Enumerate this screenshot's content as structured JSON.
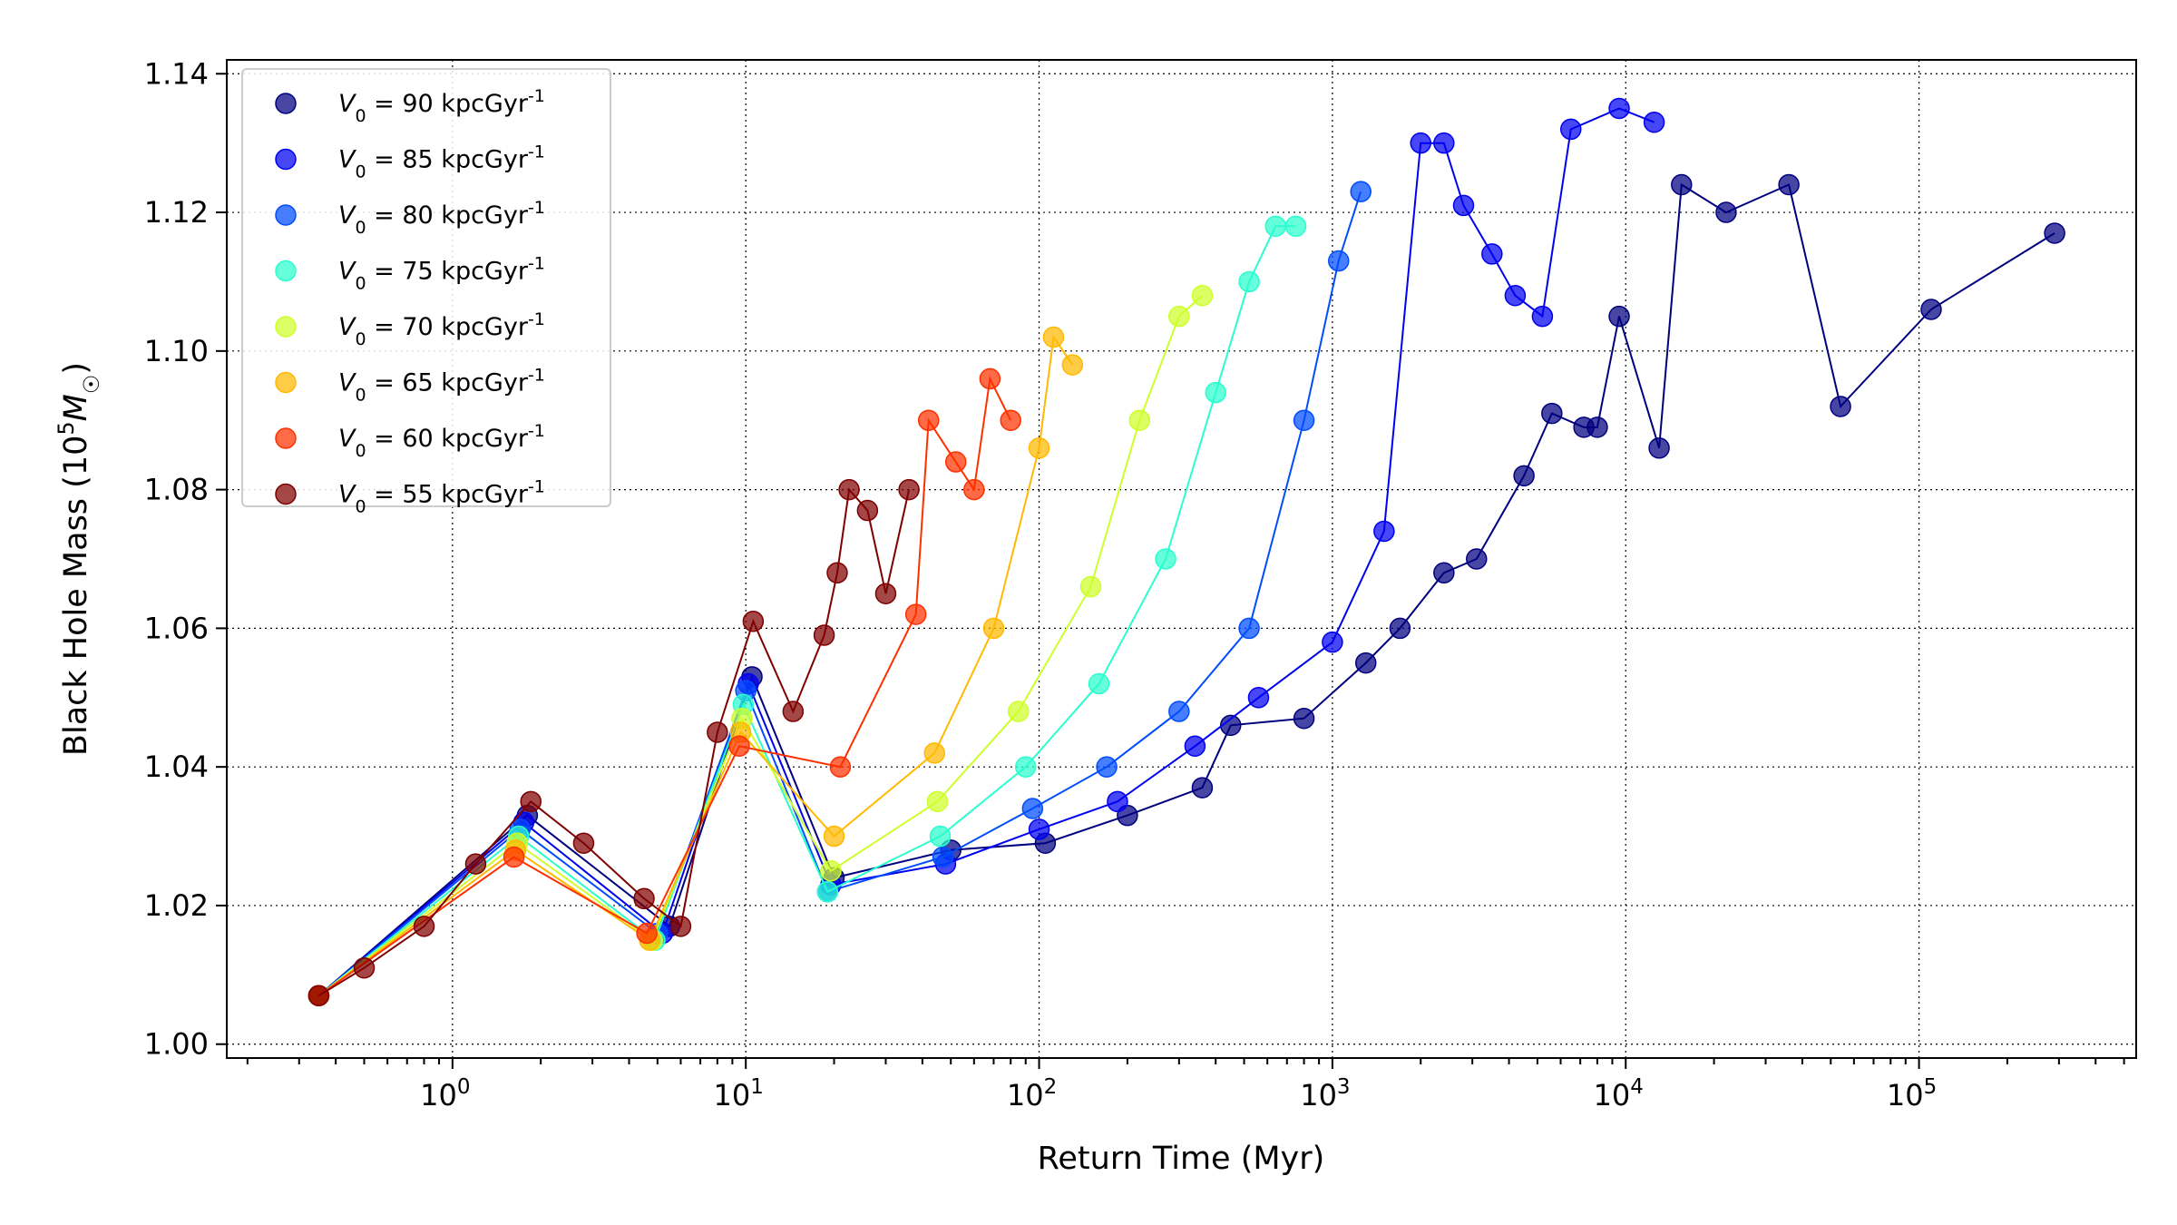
{
  "chart_data": {
    "type": "scatter",
    "xlabel": "Return Time (Myr)",
    "ylabel": "Black Hole Mass (10^5 M_☉)",
    "xscale": "log",
    "xlim": [
      0.17,
      550000
    ],
    "ylim": [
      0.998,
      1.142
    ],
    "xticks": [
      1,
      10,
      100,
      1000,
      10000,
      100000
    ],
    "xtick_labels": [
      {
        "base": "10",
        "exp": "0"
      },
      {
        "base": "10",
        "exp": "1"
      },
      {
        "base": "10",
        "exp": "2"
      },
      {
        "base": "10",
        "exp": "3"
      },
      {
        "base": "10",
        "exp": "4"
      },
      {
        "base": "10",
        "exp": "5"
      }
    ],
    "yticks": [
      1.0,
      1.02,
      1.04,
      1.06,
      1.08,
      1.1,
      1.12,
      1.14
    ],
    "ytick_labels": [
      "1.00",
      "1.02",
      "1.04",
      "1.06",
      "1.08",
      "1.10",
      "1.12",
      "1.14"
    ],
    "grid": true,
    "legend_position": "top-left",
    "series": [
      {
        "name": "V_0 = 90 kpcGyr^-1",
        "v0": 90,
        "color": "#00007f",
        "points": [
          [
            0.35,
            1.007
          ],
          [
            1.8,
            1.033
          ],
          [
            5.5,
            1.017
          ],
          [
            10.5,
            1.053
          ],
          [
            20,
            1.024
          ],
          [
            50,
            1.028
          ],
          [
            105,
            1.029
          ],
          [
            200,
            1.033
          ],
          [
            360,
            1.037
          ],
          [
            450,
            1.046
          ],
          [
            800,
            1.047
          ],
          [
            1300,
            1.055
          ],
          [
            1700,
            1.06
          ],
          [
            2400,
            1.068
          ],
          [
            3100,
            1.07
          ],
          [
            4500,
            1.082
          ],
          [
            5600,
            1.091
          ],
          [
            7200,
            1.089
          ],
          [
            8000,
            1.089
          ],
          [
            9500,
            1.105
          ],
          [
            13000,
            1.086
          ],
          [
            15500,
            1.124
          ],
          [
            22000,
            1.12
          ],
          [
            36000,
            1.124
          ],
          [
            54000,
            1.092
          ],
          [
            110000,
            1.106
          ],
          [
            290000,
            1.117
          ]
        ]
      },
      {
        "name": "V_0 = 85 kpcGyr^-1",
        "v0": 85,
        "color": "#0000f1",
        "points": [
          [
            0.35,
            1.007
          ],
          [
            1.75,
            1.032
          ],
          [
            5.2,
            1.016
          ],
          [
            10.2,
            1.052
          ],
          [
            19.5,
            1.023
          ],
          [
            48,
            1.026
          ],
          [
            100,
            1.031
          ],
          [
            185,
            1.035
          ],
          [
            340,
            1.043
          ],
          [
            560,
            1.05
          ],
          [
            1000,
            1.058
          ],
          [
            1500,
            1.074
          ],
          [
            2000,
            1.13
          ],
          [
            2400,
            1.13
          ],
          [
            2800,
            1.121
          ],
          [
            3500,
            1.114
          ],
          [
            4200,
            1.108
          ],
          [
            5200,
            1.105
          ],
          [
            6500,
            1.132
          ],
          [
            9500,
            1.135
          ],
          [
            12500,
            1.133
          ]
        ]
      },
      {
        "name": "V_0 = 80 kpcGyr^-1",
        "v0": 80,
        "color": "#004cff",
        "points": [
          [
            0.35,
            1.007
          ],
          [
            1.7,
            1.031
          ],
          [
            5.0,
            1.016
          ],
          [
            10.0,
            1.051
          ],
          [
            19,
            1.022
          ],
          [
            47,
            1.027
          ],
          [
            95,
            1.034
          ],
          [
            170,
            1.04
          ],
          [
            300,
            1.048
          ],
          [
            520,
            1.06
          ],
          [
            800,
            1.09
          ],
          [
            1050,
            1.113
          ],
          [
            1250,
            1.123
          ]
        ]
      },
      {
        "name": "V_0 = 75 kpcGyr^-1",
        "v0": 75,
        "color": "#29ffce",
        "points": [
          [
            0.35,
            1.007
          ],
          [
            1.68,
            1.03
          ],
          [
            4.9,
            1.015
          ],
          [
            9.8,
            1.049
          ],
          [
            19,
            1.022
          ],
          [
            46,
            1.03
          ],
          [
            90,
            1.04
          ],
          [
            160,
            1.052
          ],
          [
            270,
            1.07
          ],
          [
            400,
            1.094
          ],
          [
            520,
            1.11
          ],
          [
            640,
            1.118
          ],
          [
            750,
            1.118
          ]
        ]
      },
      {
        "name": "V_0 = 70 kpcGyr^-1",
        "v0": 70,
        "color": "#ceff29",
        "points": [
          [
            0.35,
            1.007
          ],
          [
            1.66,
            1.029
          ],
          [
            4.8,
            1.015
          ],
          [
            9.7,
            1.047
          ],
          [
            19.5,
            1.025
          ],
          [
            45,
            1.035
          ],
          [
            85,
            1.048
          ],
          [
            150,
            1.066
          ],
          [
            220,
            1.09
          ],
          [
            300,
            1.105
          ],
          [
            360,
            1.108
          ]
        ]
      },
      {
        "name": "V_0 = 65 kpcGyr^-1",
        "v0": 65,
        "color": "#ffb900",
        "points": [
          [
            0.35,
            1.007
          ],
          [
            1.64,
            1.028
          ],
          [
            4.7,
            1.015
          ],
          [
            9.6,
            1.045
          ],
          [
            20,
            1.03
          ],
          [
            44,
            1.042
          ],
          [
            70,
            1.06
          ],
          [
            100,
            1.086
          ],
          [
            112,
            1.102
          ],
          [
            130,
            1.098
          ]
        ]
      },
      {
        "name": "V_0 = 60 kpcGyr^-1",
        "v0": 60,
        "color": "#ff3000",
        "points": [
          [
            0.35,
            1.007
          ],
          [
            1.62,
            1.027
          ],
          [
            4.6,
            1.016
          ],
          [
            9.5,
            1.043
          ],
          [
            21,
            1.04
          ],
          [
            38,
            1.062
          ],
          [
            42,
            1.09
          ],
          [
            52,
            1.084
          ],
          [
            60,
            1.08
          ],
          [
            68,
            1.096
          ],
          [
            80,
            1.09
          ]
        ]
      },
      {
        "name": "V_0 = 55 kpcGyr^-1",
        "v0": 55,
        "color": "#7f0000",
        "points": [
          [
            0.35,
            1.007
          ],
          [
            0.5,
            1.011
          ],
          [
            0.8,
            1.017
          ],
          [
            1.2,
            1.026
          ],
          [
            1.85,
            1.035
          ],
          [
            2.8,
            1.029
          ],
          [
            4.5,
            1.021
          ],
          [
            6.0,
            1.017
          ],
          [
            8.0,
            1.045
          ],
          [
            10.6,
            1.061
          ],
          [
            14.5,
            1.048
          ],
          [
            18.5,
            1.059
          ],
          [
            20.5,
            1.068
          ],
          [
            22.5,
            1.08
          ],
          [
            26,
            1.077
          ],
          [
            30,
            1.065
          ],
          [
            36,
            1.08
          ]
        ]
      }
    ]
  }
}
